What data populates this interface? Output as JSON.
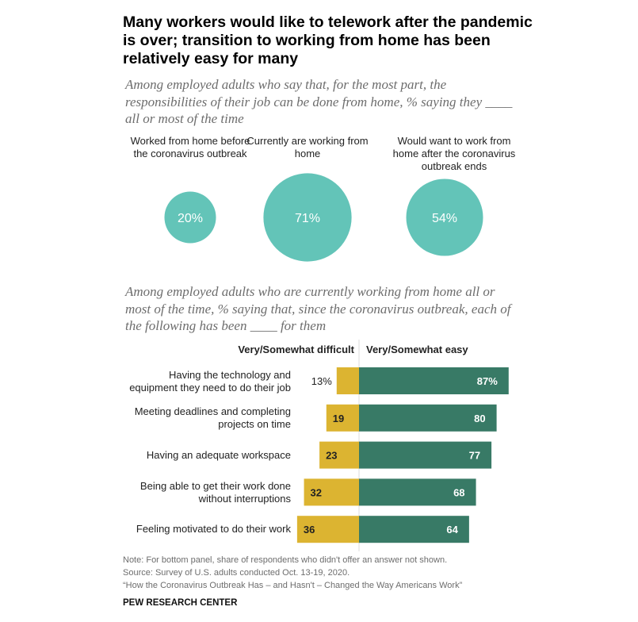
{
  "title": "Many workers would like to telework after the pandemic is over; transition to working from home has been relatively easy for many",
  "subtitle_top": "Among employed adults who say that, for the most part, the responsibilities of their job can be done from home, % saying they ____ all or most of the time",
  "subtitle_bottom": "Among employed adults who are currently working from home all or most of the time, % saying that, since the coronavirus outbreak, each of the following has been ____ for them",
  "colors": {
    "circle": "#63c4b8",
    "difficult": "#dcb431",
    "easy": "#387a66"
  },
  "chart_data": [
    {
      "type": "bubble",
      "categories": [
        "Worked from home before the coronavirus outbreak",
        "Currently are working from home",
        "Would want to work from home after the coronavirus outbreak ends"
      ],
      "values": [
        20,
        71,
        54
      ],
      "labels": [
        "20%",
        "71%",
        "54%"
      ]
    },
    {
      "type": "bar",
      "orientation": "horizontal-diverging",
      "categories": [
        "Having the technology and equipment they need to do their job",
        "Meeting deadlines and completing projects on time",
        "Having an adequate workspace",
        "Being able to get their work done without interruptions",
        "Feeling motivated to do their work"
      ],
      "series": [
        {
          "name": "Very/Somewhat difficult",
          "values": [
            13,
            19,
            23,
            32,
            36
          ],
          "labels": [
            "13%",
            "19",
            "23",
            "32",
            "36"
          ]
        },
        {
          "name": "Very/Somewhat easy",
          "values": [
            87,
            80,
            77,
            68,
            64
          ],
          "labels": [
            "87%",
            "80",
            "77",
            "68",
            "64"
          ]
        }
      ]
    }
  ],
  "notes": [
    "Note: For bottom panel, share of respondents who didn't offer an answer not shown.",
    "Source: Survey of U.S. adults conducted Oct. 13-19, 2020.",
    "“How the Coronavirus Outbreak Has – and Hasn't – Changed the Way Americans Work”"
  ],
  "brand": "PEW RESEARCH CENTER"
}
